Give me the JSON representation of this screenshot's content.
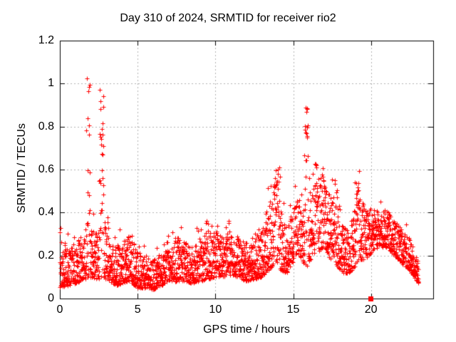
{
  "title": "Day 310 of 2024, SRMTID for receiver rio2",
  "chart_data": {
    "type": "scatter",
    "title": "Day 310 of 2024, SRMTID for receiver rio2",
    "xlabel": "GPS time / hours",
    "ylabel": "SRMTID / TECUs",
    "xlim": [
      0,
      24
    ],
    "ylim": [
      0,
      1.2
    ],
    "x_tick_labels": [
      "0",
      "5",
      "10",
      "15",
      "20"
    ],
    "x_tick_values": [
      0,
      5,
      10,
      15,
      20
    ],
    "y_tick_labels": [
      "0",
      "0.2",
      "0.4",
      "0.6",
      "0.8",
      "1",
      "1.2"
    ],
    "y_tick_values": [
      0,
      0.2,
      0.4,
      0.6,
      0.8,
      1,
      1.2
    ],
    "grid": true,
    "grid_color": "#b0b0b0",
    "legend_position": "none",
    "marker": {
      "shape": "plus",
      "color": "#ff0000",
      "size": 7
    },
    "sampling_interval_hours": 0.008333,
    "time_range_hours": [
      0,
      23.05
    ],
    "baseline_band": [
      [
        0.0,
        0.05,
        0.26
      ],
      [
        0.5,
        0.06,
        0.24
      ],
      [
        1.0,
        0.07,
        0.26
      ],
      [
        1.5,
        0.09,
        0.3
      ],
      [
        2.0,
        0.1,
        0.34
      ],
      [
        2.4,
        0.09,
        0.3
      ],
      [
        2.8,
        0.1,
        0.4
      ],
      [
        3.2,
        0.08,
        0.28
      ],
      [
        3.6,
        0.06,
        0.24
      ],
      [
        4.0,
        0.07,
        0.27
      ],
      [
        4.5,
        0.08,
        0.3
      ],
      [
        5.0,
        0.05,
        0.22
      ],
      [
        5.5,
        0.05,
        0.2
      ],
      [
        6.0,
        0.04,
        0.18
      ],
      [
        6.5,
        0.06,
        0.2
      ],
      [
        7.0,
        0.08,
        0.24
      ],
      [
        7.5,
        0.08,
        0.3
      ],
      [
        8.0,
        0.08,
        0.27
      ],
      [
        8.5,
        0.07,
        0.24
      ],
      [
        9.0,
        0.08,
        0.28
      ],
      [
        9.5,
        0.09,
        0.3
      ],
      [
        10.0,
        0.1,
        0.32
      ],
      [
        10.5,
        0.1,
        0.28
      ],
      [
        11.0,
        0.11,
        0.32
      ],
      [
        11.5,
        0.1,
        0.28
      ],
      [
        12.0,
        0.08,
        0.26
      ],
      [
        12.5,
        0.09,
        0.3
      ],
      [
        13.0,
        0.1,
        0.34
      ],
      [
        13.5,
        0.14,
        0.46
      ],
      [
        13.9,
        0.17,
        0.55
      ],
      [
        14.2,
        0.13,
        0.4
      ],
      [
        14.6,
        0.12,
        0.35
      ],
      [
        15.0,
        0.17,
        0.42
      ],
      [
        15.3,
        0.22,
        0.48
      ],
      [
        15.6,
        0.17,
        0.42
      ],
      [
        15.9,
        0.15,
        0.46
      ],
      [
        16.2,
        0.2,
        0.52
      ],
      [
        16.6,
        0.22,
        0.56
      ],
      [
        17.0,
        0.24,
        0.55
      ],
      [
        17.4,
        0.18,
        0.48
      ],
      [
        17.8,
        0.15,
        0.5
      ],
      [
        18.2,
        0.12,
        0.35
      ],
      [
        18.6,
        0.12,
        0.32
      ],
      [
        19.0,
        0.15,
        0.46
      ],
      [
        19.3,
        0.18,
        0.5
      ],
      [
        19.7,
        0.18,
        0.4
      ],
      [
        20.1,
        0.22,
        0.43
      ],
      [
        20.5,
        0.24,
        0.4
      ],
      [
        21.0,
        0.24,
        0.42
      ],
      [
        21.5,
        0.2,
        0.36
      ],
      [
        22.0,
        0.16,
        0.32
      ],
      [
        22.5,
        0.13,
        0.28
      ],
      [
        23.05,
        0.07,
        0.18
      ]
    ],
    "spikes": [
      {
        "center": 1.82,
        "halfwidth": 0.12,
        "max": 1.04
      },
      {
        "center": 2.68,
        "halfwidth": 0.14,
        "max": 0.99
      },
      {
        "center": 13.95,
        "halfwidth": 0.2,
        "max": 0.61
      },
      {
        "center": 15.82,
        "halfwidth": 0.12,
        "max": 0.91
      },
      {
        "center": 16.45,
        "halfwidth": 0.1,
        "max": 0.63
      },
      {
        "center": 16.95,
        "halfwidth": 0.1,
        "max": 0.62
      },
      {
        "center": 17.65,
        "halfwidth": 0.08,
        "max": 0.56
      },
      {
        "center": 19.15,
        "halfwidth": 0.12,
        "max": 0.57
      }
    ],
    "special_points": [
      {
        "x": 19.95,
        "y": 0,
        "marker": "filled-square",
        "color": "#ff0000"
      }
    ],
    "render_seed": 310
  }
}
